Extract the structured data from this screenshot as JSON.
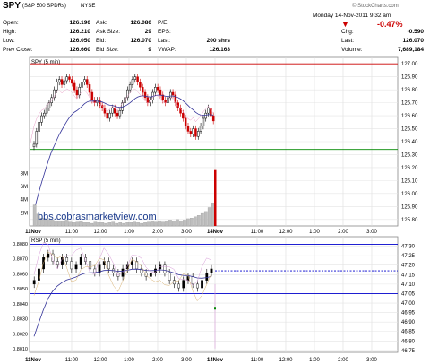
{
  "header": {
    "symbol": "SPY",
    "name": "(S&P 500 SPDRs)",
    "exchange": "NYSE",
    "datetime": "Monday 14-Nov-2011  9:32 am",
    "brand": "© StockCharts.com",
    "change_pct": "-0.47%",
    "change_color": "#cc0000",
    "quote_left": [
      {
        "label": "Open:",
        "value": "126.190"
      },
      {
        "label": "High:",
        "value": "126.210"
      },
      {
        "label": "Low:",
        "value": "126.050"
      },
      {
        "label": "Prev Close:",
        "value": "126.660"
      }
    ],
    "quote_mid": [
      {
        "label": "Ask:",
        "value": "126.080"
      },
      {
        "label": "Ask Size:",
        "value": "29"
      },
      {
        "label": "Bid:",
        "value": "126.070"
      },
      {
        "label": "Bid Size:",
        "value": "9"
      }
    ],
    "quote_right": [
      {
        "label": "P/E:",
        "value": ""
      },
      {
        "label": "EPS:",
        "value": ""
      },
      {
        "label": "Last:",
        "value": "200 shrs"
      },
      {
        "label": "VWAP:",
        "value": "126.163"
      }
    ],
    "quote_far": [
      {
        "label": "Chg:",
        "value": "-0.590"
      },
      {
        "label": "Last:",
        "value": "126.070"
      },
      {
        "label": "Volume:",
        "value": "7,689,184"
      }
    ]
  },
  "watermark": "bbs.cobrasmarketview.com",
  "chart_data": [
    {
      "type": "candlestick",
      "title": "SPY (5 min)",
      "ylim": [
        125.75,
        127.05
      ],
      "y_ticks": [
        "127.00",
        "126.90",
        "126.80",
        "126.70",
        "126.60",
        "126.50",
        "126.40",
        "126.30",
        "126.20",
        "126.10",
        "126.00",
        "125.90",
        "125.80"
      ],
      "x_ticks": [
        "11Nov",
        "11:00",
        "12:00",
        "1:00",
        "2:00",
        "3:00",
        "14Nov",
        "11:00",
        "12:00",
        "1:00",
        "2:00",
        "3:00"
      ],
      "reference_lines": [
        {
          "value": 127.0,
          "color": "#cc0000"
        },
        {
          "value": 126.66,
          "color": "#0000cc",
          "style": "dotted"
        },
        {
          "value": 126.34,
          "color": "#008800"
        }
      ],
      "volume_ticks": [
        "8M",
        "6M",
        "4M",
        "2M"
      ],
      "volume_last_bar": 8.5,
      "colors": {
        "up": "#000000",
        "down": "#cc0000",
        "ma": "#333399"
      }
    },
    {
      "type": "line",
      "title": "RSP (5 min)",
      "ylim": [
        46.74,
        47.35
      ],
      "y_ticks_right": [
        "47.30",
        "47.25",
        "47.20",
        "47.15",
        "47.10",
        "47.05",
        "47.00",
        "46.95",
        "46.90",
        "46.85",
        "46.80",
        "46.75"
      ],
      "y_ticks_left": [
        "0.8080",
        "0.8070",
        "0.8060",
        "0.8050",
        "0.8040",
        "0.8030",
        "0.8020",
        "0.8010"
      ],
      "x_ticks": [
        "11Nov",
        "11:00",
        "12:00",
        "1:00",
        "2:00",
        "3:00",
        "14Nov",
        "11:00",
        "12:00",
        "1:00",
        "2:00",
        "3:00"
      ],
      "reference_lines": [
        {
          "value": 47.31,
          "color": "#0000cc"
        },
        {
          "value": 47.17,
          "color": "#0000cc",
          "style": "dotted"
        },
        {
          "value": 47.05,
          "color": "#0000cc"
        }
      ]
    }
  ]
}
